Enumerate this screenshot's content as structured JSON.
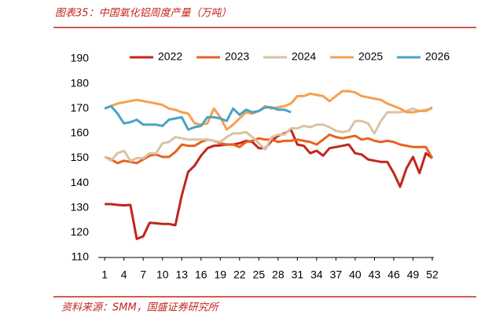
{
  "chart_data": {
    "type": "line",
    "title": "图表35：中国氧化铝周度产量（万吨）",
    "source": "资料来源：SMM，国盛证券研究所",
    "x": [
      1,
      2,
      3,
      4,
      5,
      6,
      7,
      8,
      9,
      10,
      11,
      12,
      13,
      14,
      15,
      16,
      17,
      18,
      19,
      20,
      21,
      22,
      23,
      24,
      25,
      26,
      27,
      28,
      29,
      30,
      31,
      32,
      33,
      34,
      35,
      36,
      37,
      38,
      39,
      40,
      41,
      42,
      43,
      44,
      45,
      46,
      47,
      48,
      49,
      50,
      51,
      52
    ],
    "xlim": [
      0,
      52
    ],
    "xticks": [
      1,
      4,
      7,
      10,
      13,
      16,
      19,
      22,
      25,
      28,
      31,
      34,
      37,
      40,
      43,
      46,
      49,
      52
    ],
    "ylim": [
      110,
      190
    ],
    "yticks": [
      110,
      120,
      130,
      140,
      150,
      160,
      170,
      180,
      190
    ],
    "legend": "top",
    "series": [
      {
        "name": "2022",
        "color": "#c0261b",
        "values": [
          131.5,
          131.5,
          131.2,
          131,
          131.2,
          117.5,
          118.5,
          124,
          123.8,
          123.5,
          123.5,
          123,
          135,
          144.5,
          147,
          151,
          154,
          155,
          155.2,
          155.5,
          155.5,
          156,
          157,
          156.5,
          154,
          154,
          157,
          159,
          160,
          161.5,
          155.5,
          155,
          152,
          153,
          151,
          154,
          154.5,
          155,
          155.5,
          152,
          151.5,
          149.5,
          149,
          148.5,
          148.5,
          144,
          138.5,
          146,
          150.5,
          144,
          152,
          150
        ]
      },
      {
        "name": "2023",
        "color": "#e8621e",
        "values": [
          150.5,
          149.5,
          148,
          149,
          148.5,
          148,
          149.5,
          151,
          151.5,
          150.5,
          150.5,
          152.5,
          155.5,
          155,
          155,
          156.5,
          157.5,
          157,
          156,
          155.5,
          155.5,
          154.5,
          156.5,
          157,
          158,
          157.5,
          157.5,
          156.5,
          157,
          157,
          157.5,
          157,
          156.5,
          155.5,
          157.5,
          159.5,
          158.5,
          158,
          158.5,
          159,
          157.5,
          158,
          157,
          156.5,
          157,
          156.5,
          155.5,
          155,
          154.5,
          154.5,
          154.5,
          150
        ]
      },
      {
        "name": "2024",
        "color": "#d9c3a5",
        "values": [
          150.5,
          149,
          152,
          153,
          149,
          150,
          150,
          152,
          152,
          156,
          156.5,
          158.5,
          158,
          157.5,
          157.5,
          157.5,
          157.5,
          157,
          156.5,
          158.5,
          160,
          160,
          160.5,
          158.5,
          156,
          153.5,
          158.5,
          159.5,
          159.5,
          162,
          162,
          163,
          162.5,
          163.5,
          163.5,
          162.5,
          161,
          160.5,
          161,
          165,
          165,
          164,
          160,
          165,
          168.5,
          168.5,
          168.5,
          169,
          170,
          169,
          169.5,
          170
        ]
      },
      {
        "name": "2025",
        "color": "#f5a050",
        "values": [
          170,
          171,
          172,
          172.5,
          173,
          173.5,
          173,
          172.5,
          172,
          171.5,
          170,
          169.5,
          168.5,
          168,
          164,
          163.5,
          164,
          170,
          166.5,
          161.5,
          163.5,
          166,
          168.5,
          168,
          169,
          171,
          170,
          170.5,
          171,
          172,
          175,
          175,
          176,
          175.5,
          175,
          173,
          175,
          177,
          177,
          176.5,
          175,
          174.5,
          174,
          173.5,
          172,
          171,
          170,
          168.5,
          168.5,
          169,
          169,
          170.5
        ]
      },
      {
        "name": "2026",
        "color": "#4aa3c4",
        "values": [
          170,
          171,
          168,
          164,
          164.5,
          165.5,
          163.5,
          163.5,
          163.5,
          163,
          165.5,
          166,
          166.5,
          161.5,
          162.5,
          163,
          166.5,
          166.5,
          166,
          165,
          170,
          167.5,
          169.5,
          168.5,
          169,
          170.5,
          170.5,
          169.5,
          169.5,
          168.5,
          null,
          null,
          null,
          null,
          null,
          null,
          null,
          null,
          null,
          null,
          null,
          null,
          null,
          null,
          null,
          null,
          null,
          null,
          null,
          null,
          null,
          null
        ]
      }
    ]
  }
}
